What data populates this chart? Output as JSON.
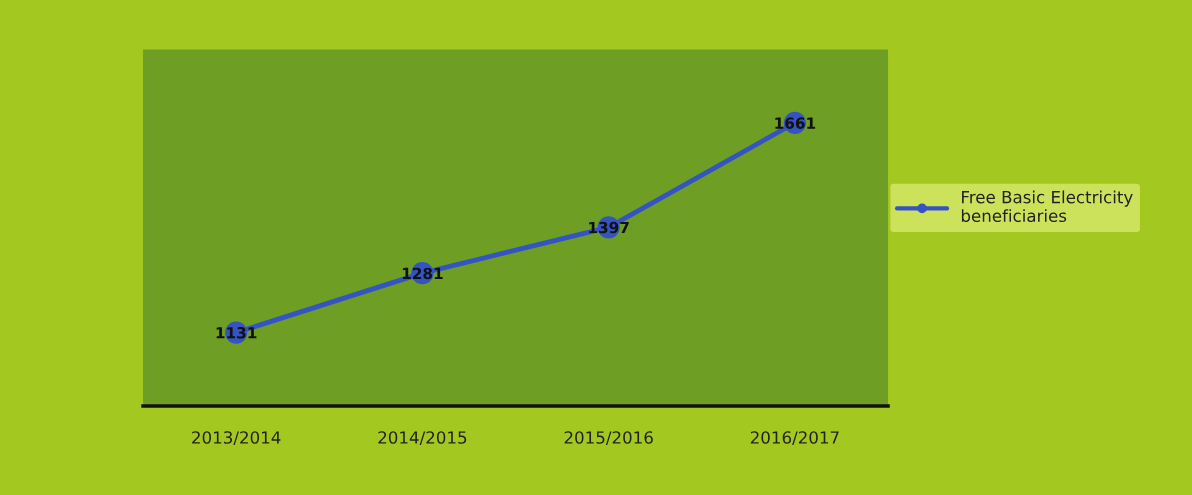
{
  "chart_data": {
    "type": "line",
    "categories": [
      "2013/2014",
      "2014/2015",
      "2015/2016",
      "2016/2017"
    ],
    "series": [
      {
        "name": "Free Basic Electricity beneficiaries",
        "color": "#3554c4",
        "values": [
          1131,
          1281,
          1397,
          1661
        ]
      }
    ],
    "data_labels": true,
    "marker": "circle",
    "line_style": "solid",
    "legend": "right",
    "tick_labels": "x"
  }
}
